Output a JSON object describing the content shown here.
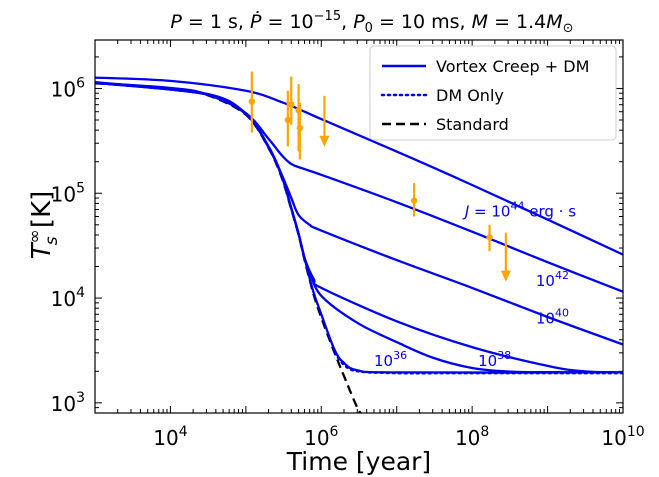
{
  "chart_data": {
    "type": "line",
    "title": {
      "sym1": "P",
      "text1": " = 1 s, ",
      "sym2": "Ṗ",
      "text2": " = 10",
      "sup2": "−15",
      "text3": ", ",
      "sym3": "P",
      "sub3": "0",
      "text4": " = 10 ms, ",
      "sym4": "M",
      "text5": " = 1.4",
      "sym5": "M",
      "sub5": "⊙"
    },
    "xlabel": "Time [year]",
    "ylabel": {
      "sym": "T",
      "sup": "∞",
      "sub": "s",
      "unit": " [K]"
    },
    "xscale": "log",
    "yscale": "log",
    "xlim": [
      1000,
      10000000000
    ],
    "ylim": [
      800,
      2900000
    ],
    "xticks": [
      {
        "value": 10000,
        "base": "10",
        "exp": "4"
      },
      {
        "value": 1000000,
        "base": "10",
        "exp": "6"
      },
      {
        "value": 100000000,
        "base": "10",
        "exp": "8"
      },
      {
        "value": 10000000000,
        "base": "10",
        "exp": "10"
      }
    ],
    "yticks": [
      {
        "value": 1000,
        "base": "10",
        "exp": "3"
      },
      {
        "value": 10000,
        "base": "10",
        "exp": "4"
      },
      {
        "value": 100000,
        "base": "10",
        "exp": "5"
      },
      {
        "value": 1000000,
        "base": "10",
        "exp": "6"
      }
    ],
    "legend": {
      "placement": "upper right",
      "entries": [
        {
          "label": "Vortex Creep + DM",
          "style": "solid",
          "color": "#0000ee"
        },
        {
          "label": "DM Only",
          "style": "dotted",
          "color": "#0000ee"
        },
        {
          "label": "Standard",
          "style": "dashed",
          "color": "#000000"
        }
      ]
    },
    "colors": {
      "model": "#0000ee",
      "standard": "#000000",
      "observations": "#ffa500"
    },
    "series": [
      {
        "label": "Standard",
        "style": "dashed",
        "color": "#000000",
        "points": [
          [
            1000,
            1120000
          ],
          [
            10000,
            1000000
          ],
          [
            30000,
            870000
          ],
          [
            100000,
            560000
          ],
          [
            200000,
            270000
          ],
          [
            300000,
            140000
          ],
          [
            400000,
            70000
          ],
          [
            500000,
            40000
          ],
          [
            600000,
            23000
          ],
          [
            700000,
            15000
          ],
          [
            800000,
            10500
          ],
          [
            1000000,
            6500
          ],
          [
            1500000,
            3000
          ],
          [
            2000000,
            1800
          ],
          [
            3000000,
            900
          ],
          [
            3500000,
            780
          ]
        ]
      },
      {
        "label": "DM Only",
        "style": "dotted",
        "color": "#0000ee",
        "points": [
          [
            1500000,
            3000
          ],
          [
            2000000,
            2300
          ],
          [
            3000000,
            2000
          ],
          [
            10000000,
            1920
          ],
          [
            100000000,
            1920
          ],
          [
            10000000000,
            1920
          ]
        ]
      },
      {
        "style": "solid",
        "color": "#0000ee",
        "points": [
          [
            1000,
            1130000
          ],
          [
            10000,
            1010000
          ],
          [
            30000,
            880000
          ],
          [
            100000,
            570000
          ],
          [
            200000,
            275000
          ],
          [
            300000,
            145000
          ],
          [
            400000,
            72000
          ],
          [
            500000,
            41000
          ],
          [
            600000,
            24000
          ],
          [
            700000,
            15500
          ],
          [
            800000,
            11000
          ],
          [
            1000000,
            7000
          ],
          [
            1500000,
            3200
          ],
          [
            2000000,
            2400
          ],
          [
            3000000,
            2050
          ],
          [
            10000000,
            1950
          ],
          [
            10000000000,
            1950
          ]
        ]
      },
      {
        "style": "solid",
        "color": "#0000ee",
        "points": [
          [
            1000,
            1130000
          ],
          [
            30000,
            880000
          ],
          [
            100000,
            570000
          ],
          [
            200000,
            275000
          ],
          [
            300000,
            145000
          ],
          [
            400000,
            72000
          ],
          [
            500000,
            41000
          ],
          [
            600000,
            24000
          ],
          [
            700000,
            18000
          ],
          [
            1000000,
            10500
          ],
          [
            3000000,
            5800
          ],
          [
            10000000,
            3800
          ],
          [
            30000000,
            2700
          ],
          [
            100000000,
            2150
          ],
          [
            300000000,
            1990
          ],
          [
            1000000000,
            1960
          ],
          [
            10000000000,
            1950
          ]
        ]
      },
      {
        "style": "solid",
        "color": "#0000ee",
        "points": [
          [
            1000,
            1130000
          ],
          [
            30000,
            880000
          ],
          [
            100000,
            570000
          ],
          [
            200000,
            275000
          ],
          [
            300000,
            145000
          ],
          [
            400000,
            72000
          ],
          [
            500000,
            41000
          ],
          [
            600000,
            24000
          ],
          [
            800000,
            15000
          ],
          [
            1000000,
            12500
          ],
          [
            10000000,
            6000
          ],
          [
            100000000,
            3400
          ],
          [
            1000000000,
            2250
          ],
          [
            3000000000,
            2000
          ],
          [
            10000000000,
            1950
          ]
        ]
      },
      {
        "style": "solid",
        "color": "#0000ee",
        "points": [
          [
            1000,
            1140000
          ],
          [
            30000,
            885000
          ],
          [
            100000,
            575000
          ],
          [
            200000,
            280000
          ],
          [
            300000,
            150000
          ],
          [
            400000,
            90000
          ],
          [
            500000,
            62000
          ],
          [
            700000,
            50000
          ],
          [
            1000000,
            44000
          ],
          [
            10000000,
            23000
          ],
          [
            100000000,
            12500
          ],
          [
            1000000000,
            6600
          ],
          [
            10000000000,
            3600
          ]
        ]
      },
      {
        "style": "solid",
        "color": "#0000ee",
        "points": [
          [
            1000,
            1150000
          ],
          [
            30000,
            890000
          ],
          [
            100000,
            580000
          ],
          [
            200000,
            330000
          ],
          [
            300000,
            230000
          ],
          [
            400000,
            190000
          ],
          [
            600000,
            170000
          ],
          [
            1000000,
            150000
          ],
          [
            10000000,
            82000
          ],
          [
            100000000,
            43000
          ],
          [
            1000000000,
            22000
          ],
          [
            10000000000,
            11500
          ]
        ]
      },
      {
        "style": "solid",
        "color": "#0000ee",
        "points": [
          [
            1000,
            1270000
          ],
          [
            10000,
            1180000
          ],
          [
            100000,
            950000
          ],
          [
            300000,
            740000
          ],
          [
            600000,
            600000
          ],
          [
            1000000,
            510000
          ],
          [
            10000000,
            250000
          ],
          [
            100000000,
            120000
          ],
          [
            1000000000,
            56000
          ],
          [
            10000000000,
            26000
          ]
        ]
      }
    ],
    "observations": [
      {
        "x": 120000,
        "y": 750000,
        "ylo": 380000,
        "yhi": 1450000,
        "upper_limit": false
      },
      {
        "x": 360000,
        "y": 500000,
        "ylo": 280000,
        "yhi": 950000,
        "upper_limit": false
      },
      {
        "x": 400000,
        "y": 700000,
        "ylo": 450000,
        "yhi": 1300000,
        "upper_limit": false
      },
      {
        "x": 500000,
        "y": 620000,
        "ylo": 250000,
        "yhi": 1100000,
        "upper_limit": false
      },
      {
        "x": 520000,
        "y": 420000,
        "ylo": 210000,
        "yhi": 730000,
        "upper_limit": false
      },
      {
        "x": 1100000,
        "y": 350000,
        "ylo": 290000,
        "yhi": 850000,
        "upper_limit": true
      },
      {
        "x": 17000000,
        "y": 85000,
        "ylo": 60000,
        "yhi": 125000,
        "upper_limit": false
      },
      {
        "x": 170000000,
        "y": 38000,
        "ylo": 28000,
        "yhi": 50000,
        "upper_limit": false
      },
      {
        "x": 280000000,
        "y": 15000,
        "ylo": 15000,
        "yhi": 42000,
        "upper_limit": true
      }
    ],
    "annotations": [
      {
        "x": 80000000,
        "y": 60000,
        "sym": "J",
        "text": " = 10",
        "sup": "44",
        "text2": " erg · s"
      },
      {
        "x": 700000000,
        "y": 13000,
        "text": "10",
        "sup": "42"
      },
      {
        "x": 700000000,
        "y": 5700,
        "text": "10",
        "sup": "40"
      },
      {
        "x": 120000000,
        "y": 2250,
        "text": "10",
        "sup": "38"
      },
      {
        "x": 5000000,
        "y": 2250,
        "text": "10",
        "sup": "36"
      }
    ]
  }
}
